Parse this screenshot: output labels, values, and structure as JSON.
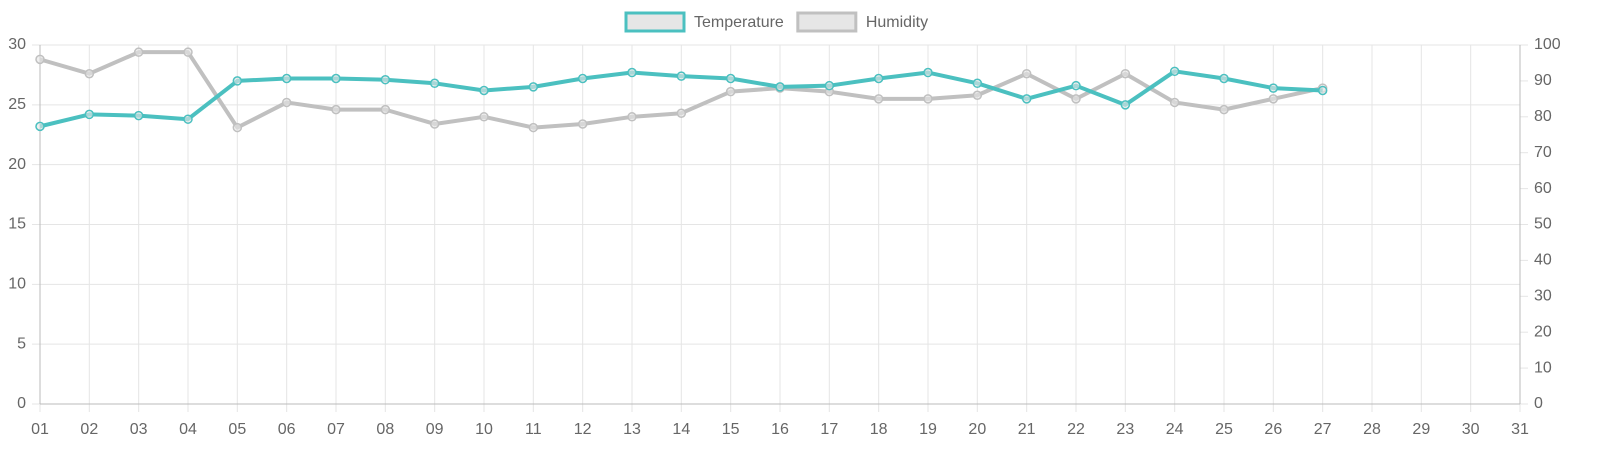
{
  "chart_data": {
    "type": "line",
    "categories": [
      "01",
      "02",
      "03",
      "04",
      "05",
      "06",
      "07",
      "08",
      "09",
      "10",
      "11",
      "12",
      "13",
      "14",
      "15",
      "16",
      "17",
      "18",
      "19",
      "20",
      "21",
      "22",
      "23",
      "24",
      "25",
      "26",
      "27",
      "28",
      "29",
      "30",
      "31"
    ],
    "series": [
      {
        "name": "Temperature",
        "color": "#4bc0c0",
        "axis": "y",
        "values": [
          23.2,
          24.2,
          24.1,
          23.8,
          27.0,
          27.2,
          27.2,
          27.1,
          26.8,
          26.2,
          26.5,
          27.2,
          27.7,
          27.4,
          27.2,
          26.5,
          26.6,
          27.2,
          27.7,
          26.8,
          25.5,
          26.6,
          25.0,
          27.8,
          27.2,
          26.4,
          26.2,
          null,
          null,
          null,
          null
        ]
      },
      {
        "name": "Humidity",
        "color": "#c0c0c0",
        "axis": "y2",
        "values": [
          96,
          92,
          98,
          98,
          77,
          84,
          82,
          82,
          78,
          80,
          77,
          78,
          80,
          81,
          87,
          88,
          87,
          85,
          85,
          86,
          92,
          85,
          92,
          84,
          82,
          85,
          88,
          null,
          null,
          null,
          null
        ]
      }
    ],
    "ylim": [
      0,
      30
    ],
    "yticks": [
      0,
      5,
      10,
      15,
      20,
      25,
      30
    ],
    "y2lim": [
      0,
      100
    ],
    "y2ticks": [
      0,
      10,
      20,
      30,
      40,
      50,
      60,
      70,
      80,
      90,
      100
    ],
    "grid": true,
    "legend": "top"
  }
}
